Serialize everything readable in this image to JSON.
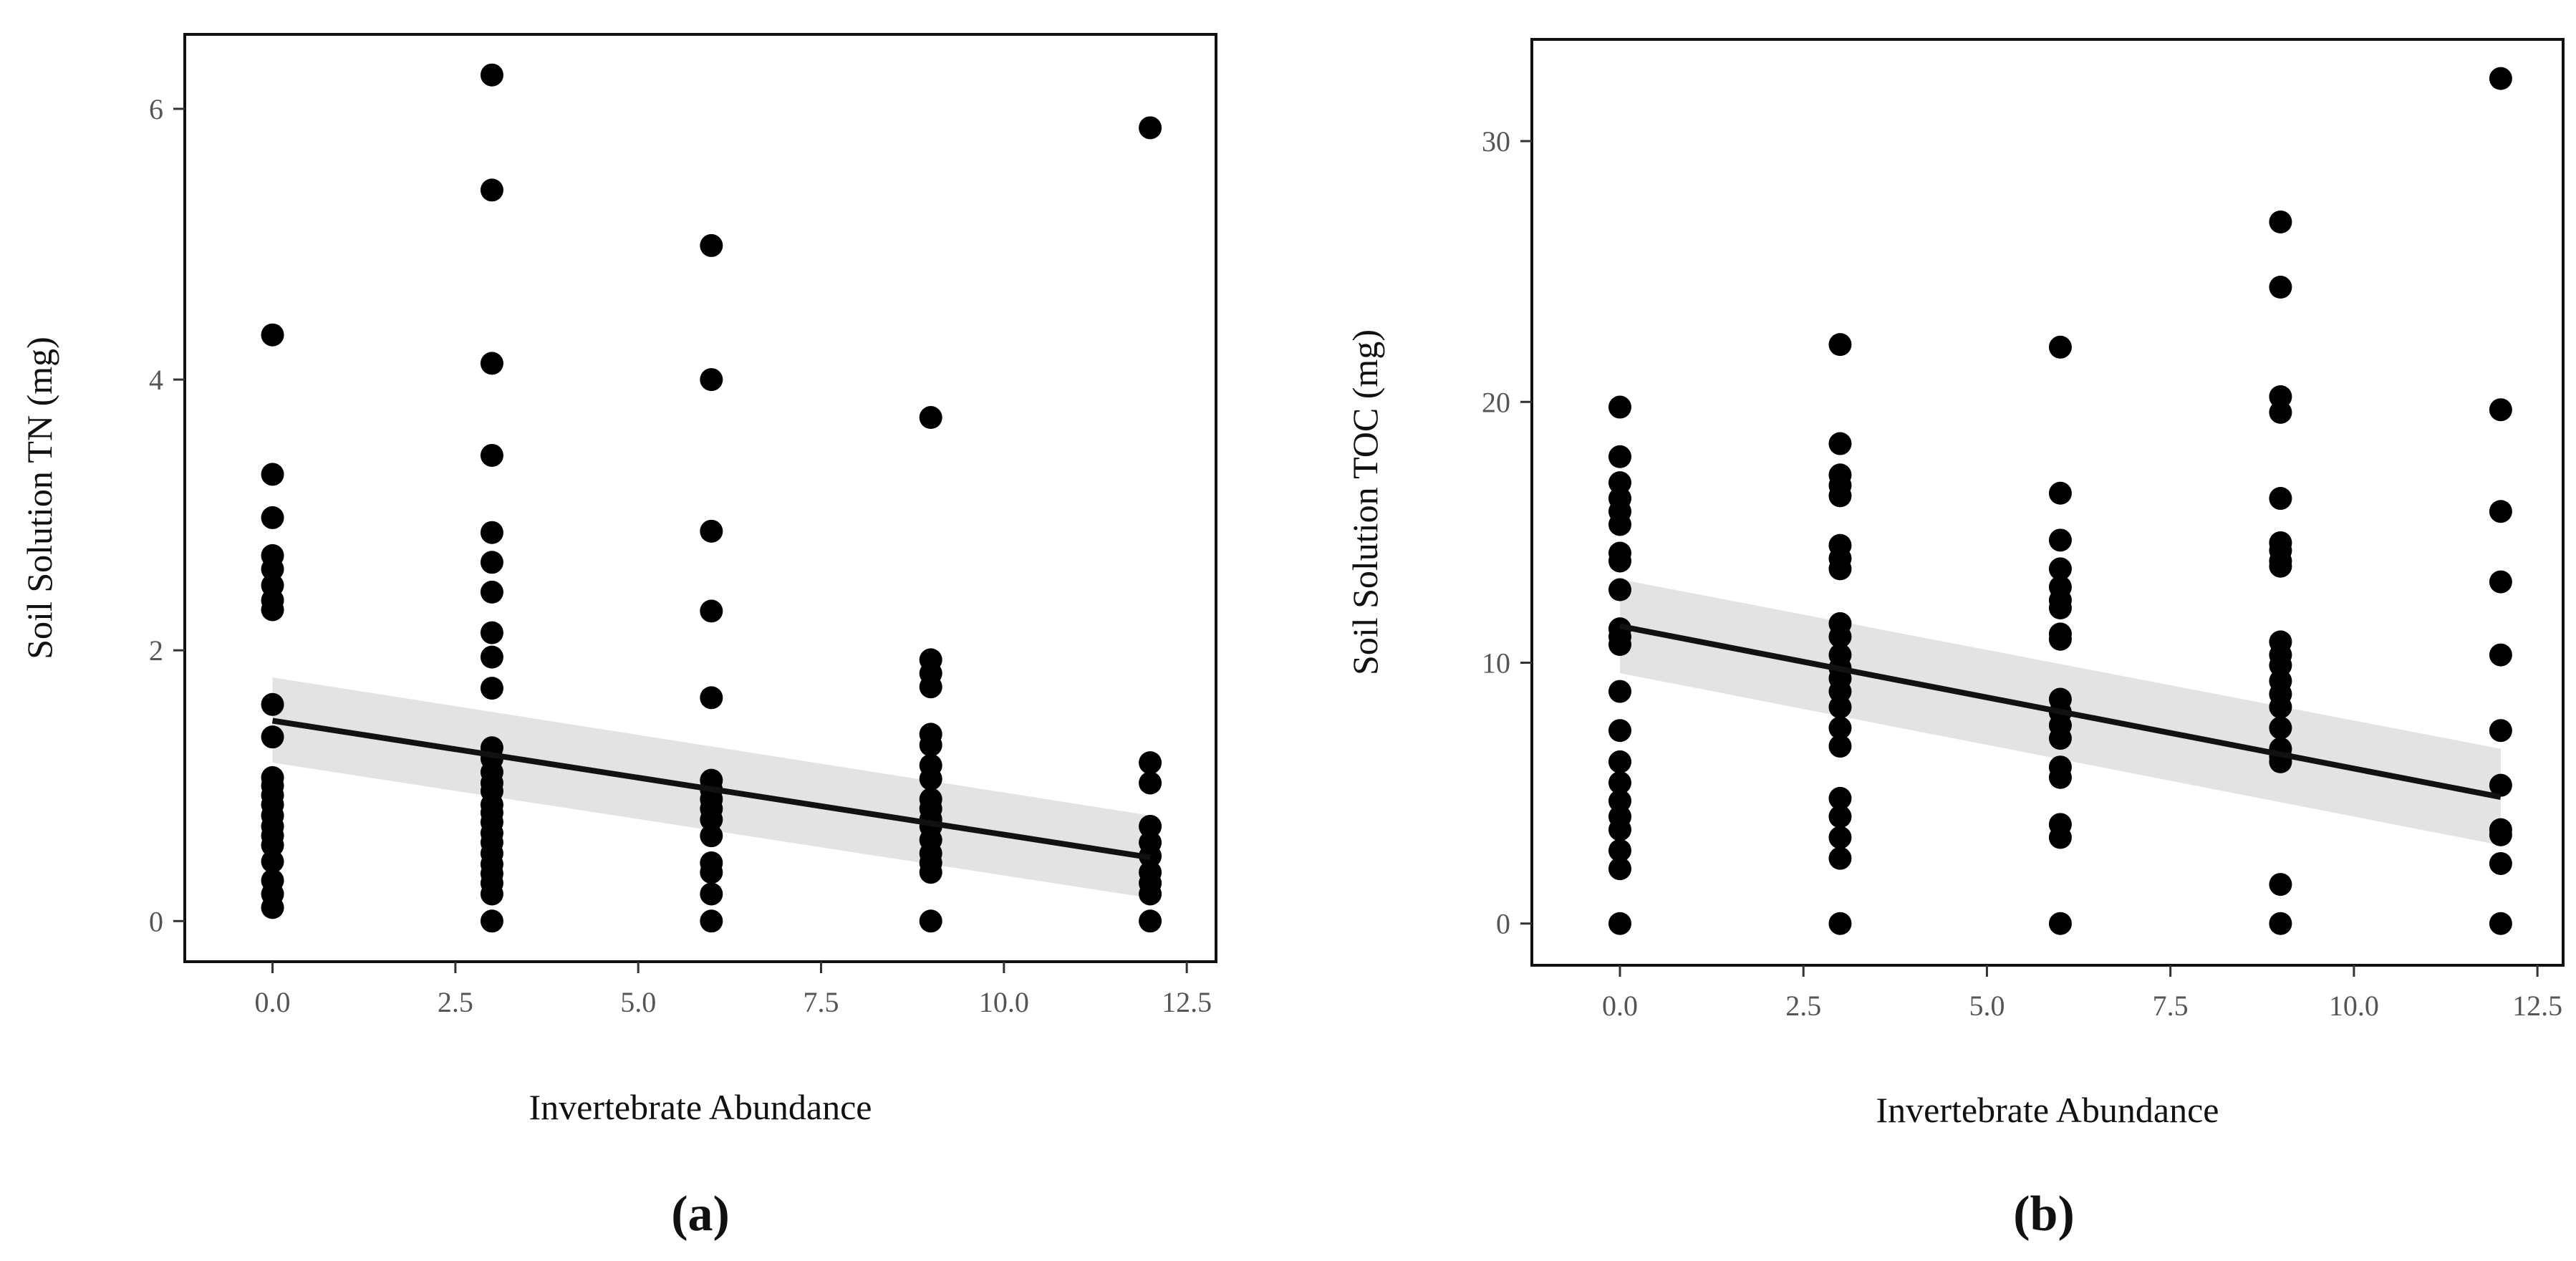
{
  "chart_data": [
    {
      "type": "scatter",
      "panel_label": "(a)",
      "xlabel": "Invertebrate Abundance",
      "ylabel": "Soil Solution TN (mg)",
      "xlim": [
        -1.2,
        12.9
      ],
      "ylim": [
        -0.3,
        6.55
      ],
      "xticks": [
        0,
        2.5,
        5,
        7.5,
        10,
        12.5
      ],
      "xtick_labels": [
        "0.0",
        "2.5",
        "5.0",
        "7.5",
        "10.0",
        "12.5"
      ],
      "yticks": [
        0,
        2,
        4,
        6
      ],
      "ytick_labels": [
        "0",
        "2",
        "4",
        "6"
      ],
      "groups": [
        {
          "x": 0,
          "y": [
            4.33,
            3.3,
            2.98,
            2.7,
            2.6,
            2.48,
            2.37,
            2.3,
            1.6,
            1.36,
            1.06,
            1.0,
            0.93,
            0.86,
            0.78,
            0.7,
            0.63,
            0.56,
            0.44,
            0.3,
            0.2,
            0.1
          ]
        },
        {
          "x": 3,
          "y": [
            6.25,
            5.4,
            4.12,
            3.44,
            2.87,
            2.65,
            2.43,
            2.13,
            1.95,
            1.72,
            1.28,
            1.2,
            1.1,
            1.02,
            0.96,
            0.86,
            0.8,
            0.73,
            0.65,
            0.58,
            0.5,
            0.42,
            0.35,
            0.28,
            0.2,
            0.0
          ]
        },
        {
          "x": 6,
          "y": [
            4.99,
            4.0,
            2.88,
            2.29,
            1.65,
            1.04,
            0.97,
            0.9,
            0.83,
            0.75,
            0.63,
            0.43,
            0.36,
            0.2,
            0.0
          ]
        },
        {
          "x": 9,
          "y": [
            3.72,
            1.93,
            1.83,
            1.73,
            1.38,
            1.3,
            1.15,
            1.05,
            0.9,
            0.83,
            0.75,
            0.7,
            0.6,
            0.5,
            0.43,
            0.36,
            0.0
          ]
        },
        {
          "x": 12,
          "y": [
            5.86,
            1.17,
            1.02,
            0.7,
            0.58,
            0.48,
            0.36,
            0.28,
            0.2,
            0.0
          ]
        }
      ],
      "fit": {
        "x": [
          0,
          12
        ],
        "y": [
          1.48,
          0.47
        ]
      },
      "band": {
        "x": [
          0,
          12
        ],
        "upper": [
          1.8,
          0.78
        ],
        "lower": [
          1.17,
          0.17
        ]
      }
    },
    {
      "type": "scatter",
      "panel_label": "(b)",
      "xlabel": "Invertebrate Abundance",
      "ylabel": "Soil Solution TOC (mg)",
      "xlim": [
        -1.2,
        12.85
      ],
      "ylim": [
        -1.6,
        33.9
      ],
      "xticks": [
        0,
        2.5,
        5,
        7.5,
        10,
        12.5
      ],
      "xtick_labels": [
        "0.0",
        "2.5",
        "5.0",
        "7.5",
        "10.0",
        "12.5"
      ],
      "yticks": [
        0,
        10,
        20,
        30
      ],
      "ytick_labels": [
        "0",
        "10",
        "20",
        "30"
      ],
      "groups": [
        {
          "x": 0,
          "y": [
            19.8,
            17.9,
            16.9,
            16.3,
            15.8,
            15.3,
            14.2,
            13.9,
            12.8,
            11.3,
            11.0,
            10.7,
            8.9,
            7.4,
            6.2,
            5.4,
            4.7,
            4.1,
            3.6,
            2.8,
            2.1,
            0.0
          ]
        },
        {
          "x": 3,
          "y": [
            22.2,
            18.4,
            17.2,
            16.8,
            16.4,
            14.5,
            14.0,
            13.6,
            11.5,
            11.0,
            10.3,
            9.8,
            9.4,
            8.9,
            8.3,
            7.5,
            6.8,
            4.8,
            4.1,
            3.3,
            2.5,
            0.0
          ]
        },
        {
          "x": 6,
          "y": [
            22.1,
            16.5,
            14.7,
            13.6,
            12.9,
            12.4,
            12.1,
            11.1,
            10.9,
            8.6,
            8.1,
            7.6,
            7.1,
            6.0,
            5.6,
            3.8,
            3.3,
            0.0
          ]
        },
        {
          "x": 9,
          "y": [
            26.9,
            24.4,
            20.2,
            19.6,
            16.3,
            14.6,
            14.3,
            13.9,
            13.7,
            10.8,
            10.3,
            9.9,
            9.3,
            8.8,
            8.3,
            7.5,
            6.7,
            6.4,
            6.2,
            1.5,
            0.0
          ]
        },
        {
          "x": 12,
          "y": [
            32.4,
            19.7,
            15.8,
            13.1,
            10.3,
            7.4,
            5.3,
            3.6,
            3.4,
            2.3,
            0.0
          ]
        }
      ],
      "fit": {
        "x": [
          0,
          12
        ],
        "y": [
          11.4,
          4.85
        ]
      },
      "band": {
        "x": [
          0,
          12
        ],
        "upper": [
          13.2,
          6.7
        ],
        "lower": [
          9.6,
          3.0
        ]
      }
    }
  ]
}
